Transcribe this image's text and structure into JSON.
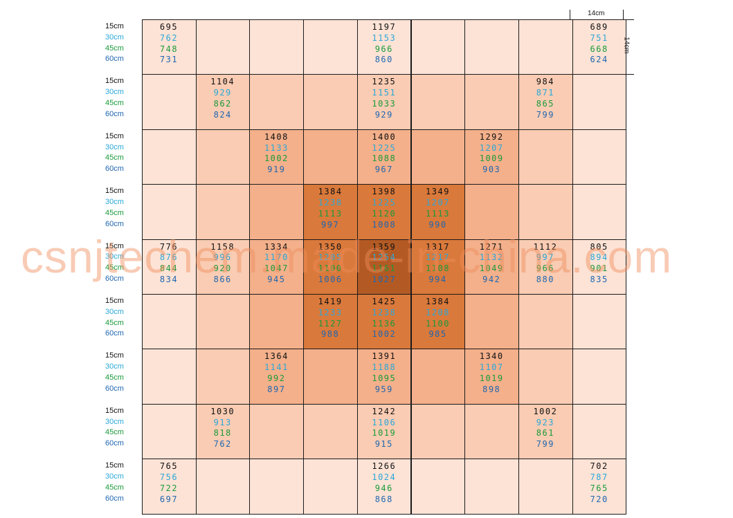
{
  "chart_data": {
    "type": "heatmap",
    "title": "",
    "depth_labels": [
      "15cm",
      "30cm",
      "45cm",
      "60cm"
    ],
    "depth_colors": [
      "#111111",
      "#2aa7d8",
      "#1a9a3a",
      "#1f66b0"
    ],
    "cell_dimension_labels": {
      "width": "14cm",
      "height": "14cm"
    },
    "shade_levels": [
      "#fde3d6",
      "#f9ccb3",
      "#f3b08b",
      "#e9985f",
      "#d9793b",
      "#b35a24"
    ],
    "shading": [
      [
        0,
        0,
        0,
        0,
        0,
        0,
        0,
        0,
        0
      ],
      [
        0,
        1,
        1,
        1,
        1,
        1,
        1,
        1,
        0
      ],
      [
        0,
        1,
        2,
        2,
        2,
        2,
        2,
        1,
        0
      ],
      [
        0,
        1,
        2,
        4,
        4,
        4,
        2,
        1,
        0
      ],
      [
        0,
        1,
        2,
        4,
        5,
        4,
        2,
        1,
        0
      ],
      [
        0,
        1,
        2,
        4,
        4,
        4,
        2,
        1,
        0
      ],
      [
        0,
        1,
        2,
        2,
        2,
        2,
        2,
        1,
        0
      ],
      [
        0,
        1,
        1,
        1,
        1,
        1,
        1,
        1,
        0
      ],
      [
        0,
        0,
        0,
        0,
        0,
        0,
        0,
        0,
        0
      ]
    ],
    "rows": [
      [
        [
          "695",
          "762",
          "748",
          "731"
        ],
        null,
        null,
        null,
        [
          "1197",
          "1153",
          "966",
          "860"
        ],
        null,
        null,
        null,
        [
          "689",
          "751",
          "668",
          "624"
        ]
      ],
      [
        null,
        [
          "1104",
          "929",
          "862",
          "824"
        ],
        null,
        null,
        [
          "1235",
          "1151",
          "1033",
          "929"
        ],
        null,
        null,
        [
          "984",
          "871",
          "865",
          "799"
        ],
        null
      ],
      [
        null,
        null,
        [
          "1408",
          "1133",
          "1002",
          "919"
        ],
        null,
        [
          "1400",
          "1225",
          "1088",
          "967"
        ],
        null,
        [
          "1292",
          "1207",
          "1009",
          "903"
        ],
        null,
        null
      ],
      [
        null,
        null,
        null,
        [
          "1384",
          "1238",
          "1113",
          "997"
        ],
        [
          "1398",
          "1225",
          "1120",
          "1008"
        ],
        [
          "1349",
          "1207",
          "1113",
          "990"
        ],
        null,
        null,
        null
      ],
      [
        [
          "776",
          "876",
          "844",
          "834"
        ],
        [
          "1158",
          "996",
          "920",
          "866"
        ],
        [
          "1334",
          "1170",
          "1047",
          "945"
        ],
        [
          "1350",
          "1205",
          "1100",
          "1006"
        ],
        [
          "1359",
          "1254",
          "1161",
          "1027"
        ],
        [
          "1317",
          "1217",
          "1108",
          "994"
        ],
        [
          "1271",
          "1132",
          "1049",
          "942"
        ],
        [
          "1112",
          "997",
          "966",
          "880"
        ],
        [
          "805",
          "894",
          "901",
          "835"
        ]
      ],
      [
        null,
        null,
        null,
        [
          "1419",
          "1233",
          "1127",
          "988"
        ],
        [
          "1425",
          "1238",
          "1136",
          "1002"
        ],
        [
          "1384",
          "1208",
          "1100",
          "985"
        ],
        null,
        null,
        null
      ],
      [
        null,
        null,
        [
          "1364",
          "1141",
          "992",
          "897"
        ],
        null,
        [
          "1391",
          "1188",
          "1095",
          "959"
        ],
        null,
        [
          "1340",
          "1107",
          "1019",
          "898"
        ],
        null,
        null
      ],
      [
        null,
        [
          "1030",
          "913",
          "818",
          "762"
        ],
        null,
        null,
        [
          "1242",
          "1106",
          "1019",
          "915"
        ],
        null,
        null,
        [
          "1002",
          "923",
          "861",
          "799"
        ],
        null
      ],
      [
        [
          "765",
          "756",
          "722",
          "697"
        ],
        null,
        null,
        null,
        [
          "1266",
          "1024",
          "946",
          "868"
        ],
        null,
        null,
        null,
        [
          "702",
          "787",
          "765",
          "720"
        ]
      ]
    ]
  },
  "watermark": "csnjtechem.made-in-china.com"
}
